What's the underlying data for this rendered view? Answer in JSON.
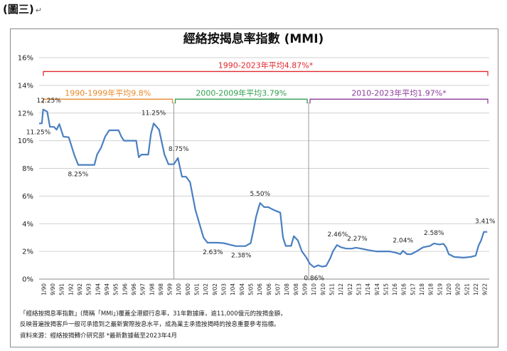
{
  "figure_label": "(圖三)",
  "figure_label_mark": "↵",
  "chart_data": {
    "type": "line",
    "title": "經絡按揭息率指數 (MMI)",
    "xlabel": "",
    "ylabel": "",
    "ylim": [
      0,
      16
    ],
    "y_ticks": [
      "0%",
      "2%",
      "4%",
      "6%",
      "8%",
      "10%",
      "12%",
      "14%",
      "16%"
    ],
    "x_tick_labels": [
      "1/90",
      "9/90",
      "5/91",
      "1/92",
      "9/92",
      "5/93",
      "1/94",
      "9/94",
      "5/95",
      "1/96",
      "9/96",
      "5/97",
      "1/98",
      "9/98",
      "5/99",
      "1/00",
      "9/00",
      "5/01",
      "1/02",
      "9/02",
      "5/03",
      "1/04",
      "9/04",
      "5/05",
      "1/06",
      "9/06",
      "5/07",
      "1/08",
      "9/08",
      "5/09",
      "1/10",
      "9/10",
      "5/11",
      "1/12",
      "9/12",
      "5/13",
      "1/14",
      "9/14",
      "5/15",
      "1/16",
      "9/16",
      "5/17",
      "1/18",
      "9/18",
      "5/19",
      "1/20",
      "9/20",
      "5/21",
      "1/22",
      "9/22"
    ],
    "series": [
      {
        "name": "MMI",
        "color": "#4a7fc1",
        "points": [
          [
            1990.0,
            11.25
          ],
          [
            1990.2,
            11.25
          ],
          [
            1990.3,
            12.25
          ],
          [
            1990.6,
            12.1
          ],
          [
            1990.8,
            11.0
          ],
          [
            1991.1,
            11.0
          ],
          [
            1991.3,
            10.8
          ],
          [
            1991.5,
            11.2
          ],
          [
            1991.8,
            10.3
          ],
          [
            1992.2,
            10.25
          ],
          [
            1992.6,
            9.0
          ],
          [
            1992.9,
            8.25
          ],
          [
            1993.5,
            8.25
          ],
          [
            1994.1,
            8.25
          ],
          [
            1994.3,
            9.0
          ],
          [
            1994.6,
            9.5
          ],
          [
            1994.9,
            10.3
          ],
          [
            1995.2,
            10.75
          ],
          [
            1995.9,
            10.75
          ],
          [
            1996.1,
            10.3
          ],
          [
            1996.3,
            10.0
          ],
          [
            1997.2,
            10.0
          ],
          [
            1997.4,
            8.8
          ],
          [
            1997.6,
            9.0
          ],
          [
            1998.1,
            9.0
          ],
          [
            1998.3,
            10.5
          ],
          [
            1998.5,
            11.25
          ],
          [
            1998.9,
            10.8
          ],
          [
            1999.3,
            9.0
          ],
          [
            1999.6,
            8.3
          ],
          [
            2000.0,
            8.3
          ],
          [
            2000.3,
            8.75
          ],
          [
            2000.6,
            7.4
          ],
          [
            2000.9,
            7.4
          ],
          [
            2001.2,
            7.0
          ],
          [
            2001.6,
            5.0
          ],
          [
            2001.9,
            4.0
          ],
          [
            2002.2,
            3.0
          ],
          [
            2002.5,
            2.63
          ],
          [
            2003.2,
            2.63
          ],
          [
            2003.7,
            2.6
          ],
          [
            2004.1,
            2.5
          ],
          [
            2004.6,
            2.38
          ],
          [
            2005.3,
            2.38
          ],
          [
            2005.7,
            2.6
          ],
          [
            2005.9,
            3.5
          ],
          [
            2006.1,
            4.5
          ],
          [
            2006.3,
            5.2
          ],
          [
            2006.4,
            5.5
          ],
          [
            2006.7,
            5.2
          ],
          [
            2007.0,
            5.2
          ],
          [
            2007.4,
            5.0
          ],
          [
            2007.9,
            4.8
          ],
          [
            2008.1,
            3.0
          ],
          [
            2008.3,
            2.4
          ],
          [
            2008.7,
            2.4
          ],
          [
            2008.9,
            3.1
          ],
          [
            2009.2,
            2.8
          ],
          [
            2009.5,
            2.0
          ],
          [
            2009.8,
            1.6
          ],
          [
            2010.1,
            1.1
          ],
          [
            2010.4,
            0.86
          ],
          [
            2010.7,
            1.0
          ],
          [
            2011.0,
            0.9
          ],
          [
            2011.3,
            0.95
          ],
          [
            2011.6,
            1.5
          ],
          [
            2011.8,
            2.0
          ],
          [
            2012.1,
            2.46
          ],
          [
            2012.4,
            2.3
          ],
          [
            2012.8,
            2.2
          ],
          [
            2013.2,
            2.2
          ],
          [
            2013.5,
            2.27
          ],
          [
            2013.9,
            2.2
          ],
          [
            2014.4,
            2.1
          ],
          [
            2015.0,
            2.0
          ],
          [
            2016.0,
            2.0
          ],
          [
            2016.5,
            1.9
          ],
          [
            2016.8,
            1.8
          ],
          [
            2017.0,
            2.04
          ],
          [
            2017.3,
            1.8
          ],
          [
            2017.6,
            1.8
          ],
          [
            2018.0,
            2.0
          ],
          [
            2018.5,
            2.3
          ],
          [
            2019.0,
            2.4
          ],
          [
            2019.3,
            2.58
          ],
          [
            2019.7,
            2.5
          ],
          [
            2020.0,
            2.55
          ],
          [
            2020.2,
            2.3
          ],
          [
            2020.4,
            1.8
          ],
          [
            2020.8,
            1.6
          ],
          [
            2021.5,
            1.55
          ],
          [
            2022.0,
            1.6
          ],
          [
            2022.4,
            1.7
          ],
          [
            2022.6,
            2.4
          ],
          [
            2022.8,
            2.8
          ],
          [
            2023.0,
            3.41
          ],
          [
            2023.25,
            3.41
          ]
        ]
      }
    ],
    "data_labels": [
      {
        "id": "label-1990-peak",
        "text": "12.25%",
        "x": 1990.3,
        "y": 12.25
      },
      {
        "id": "label-1990-start",
        "text": "11.25%",
        "x": 1990.0,
        "y": 11.25
      },
      {
        "id": "label-1993",
        "text": "8.25%",
        "x": 1993.0,
        "y": 8.25
      },
      {
        "id": "label-1998",
        "text": "11.25%",
        "x": 1998.5,
        "y": 11.25
      },
      {
        "id": "label-2000",
        "text": "8.75%",
        "x": 2000.3,
        "y": 8.75
      },
      {
        "id": "label-2003",
        "text": "2.63%",
        "x": 2003.0,
        "y": 2.63
      },
      {
        "id": "label-2005",
        "text": "2.38%",
        "x": 2005.0,
        "y": 2.38
      },
      {
        "id": "label-2006",
        "text": "5.50%",
        "x": 2006.4,
        "y": 5.5
      },
      {
        "id": "label-2010",
        "text": "0.86%",
        "x": 2010.4,
        "y": 0.86
      },
      {
        "id": "label-2012",
        "text": "2.46%",
        "x": 2012.1,
        "y": 2.46
      },
      {
        "id": "label-2013",
        "text": "2.27%",
        "x": 2013.5,
        "y": 2.27
      },
      {
        "id": "label-2017",
        "text": "2.04%",
        "x": 2017.0,
        "y": 2.04
      },
      {
        "id": "label-2019",
        "text": "2.58%",
        "x": 2019.3,
        "y": 2.58
      },
      {
        "id": "label-2023",
        "text": "3.41%",
        "x": 2023.1,
        "y": 3.41
      }
    ],
    "annotations": [
      {
        "id": "bracket-overall",
        "text": "1990-2023年平均4.87%*",
        "from": 1990.0,
        "to": 2023.4,
        "level": 15.0,
        "color": "#e0262c"
      },
      {
        "id": "bracket-1990s",
        "text": "1990-1999年平均9.8%",
        "from": 1990.0,
        "to": 2000.0,
        "level": 13.0,
        "color": "#e8882a"
      },
      {
        "id": "bracket-2000s",
        "text": "2000-2009年平均3.79%",
        "from": 2000.0,
        "to": 2010.0,
        "level": 13.0,
        "color": "#2e9e4f"
      },
      {
        "id": "bracket-2010s",
        "text": "2010-2023年平均1.97%*",
        "from": 2010.0,
        "to": 2023.4,
        "level": 13.0,
        "color": "#8b3a9c"
      }
    ],
    "decade_dividers": [
      2000.0,
      2010.0
    ]
  },
  "footnotes": [
    "「經絡按揭息率指數」(簡稱「MMI」)覆蓋全港銀行息率，31年數據庫，逾11,000億元的按揭金額，",
    "反映普遍按揭客戶一般可承擔到之最新實際按息水平，成為業主承擔按揭時的按息重要參考指標。",
    "資料來源：經絡按揭轉介研究部   *最新數據截至2023年4月"
  ]
}
